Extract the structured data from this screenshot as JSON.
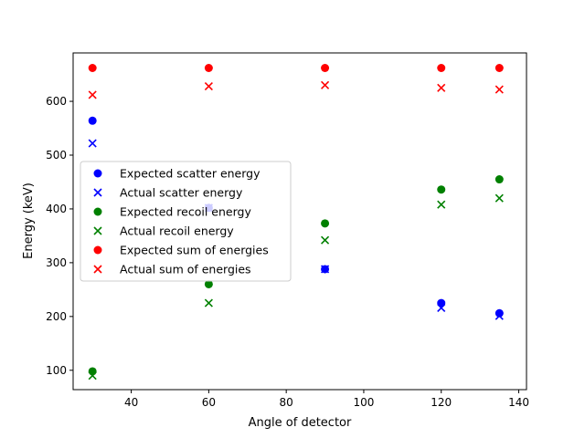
{
  "chart_data": {
    "type": "scatter",
    "xlabel": "Angle of detector",
    "ylabel": "Energy (keV)",
    "xlim": [
      25,
      142
    ],
    "ylim": [
      64,
      690
    ],
    "xticks": [
      40,
      60,
      80,
      100,
      120,
      140
    ],
    "yticks": [
      100,
      200,
      300,
      400,
      500,
      600
    ],
    "x": [
      30,
      60,
      90,
      120,
      135
    ],
    "legend_position": "center-left",
    "grid": false,
    "series": [
      {
        "name": "Expected scatter energy",
        "marker": "circle",
        "color": "#0000ff",
        "values": [
          564,
          402,
          288,
          225,
          206
        ]
      },
      {
        "name": "Actual scatter energy",
        "marker": "x",
        "color": "#0000ff",
        "values": [
          522,
          402,
          288,
          216,
          201
        ]
      },
      {
        "name": "Expected recoil energy",
        "marker": "circle",
        "color": "#008000",
        "values": [
          98,
          260,
          373,
          436,
          455
        ]
      },
      {
        "name": "Actual recoil energy",
        "marker": "x",
        "color": "#008000",
        "values": [
          90,
          225,
          342,
          408,
          420
        ]
      },
      {
        "name": "Expected sum of energies",
        "marker": "circle",
        "color": "#ff0000",
        "values": [
          662,
          662,
          662,
          662,
          662
        ]
      },
      {
        "name": "Actual sum of energies",
        "marker": "x",
        "color": "#ff0000",
        "values": [
          612,
          628,
          630,
          625,
          622
        ]
      }
    ]
  }
}
